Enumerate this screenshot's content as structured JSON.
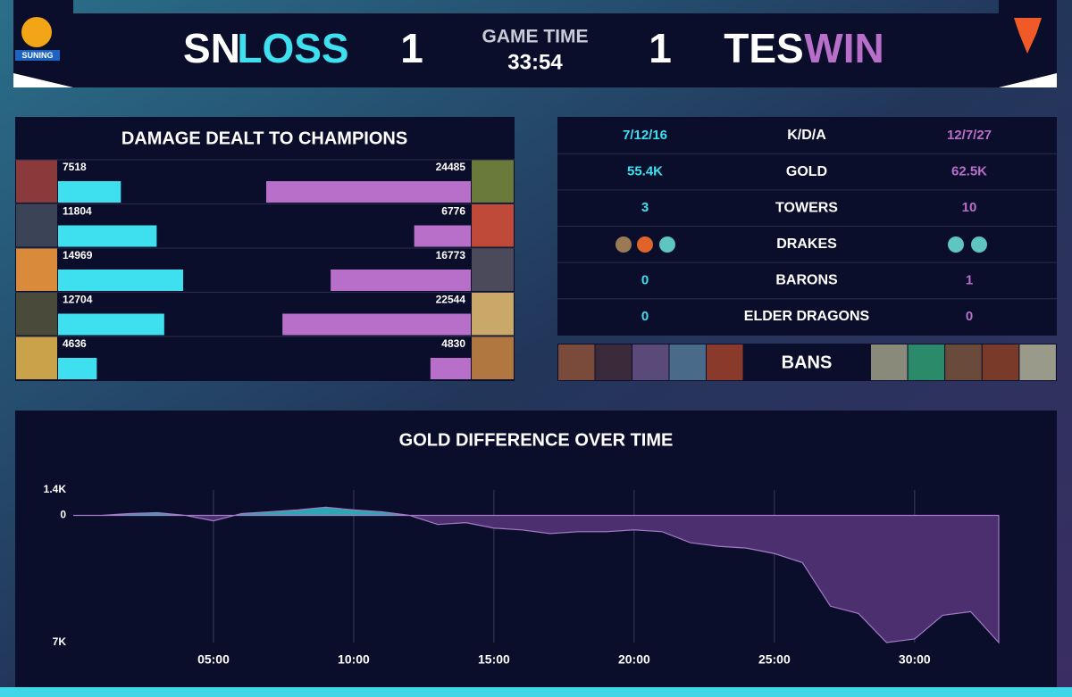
{
  "header": {
    "team_left": "SN",
    "result_left": "LOSS",
    "score_left": "1",
    "game_time_label": "GAME TIME",
    "game_time": "33:54",
    "score_right": "1",
    "team_right": "TES",
    "result_right": "WIN",
    "logo_left_text": "SUNING"
  },
  "damage": {
    "title": "DAMAGE DEALT TO CHAMPIONS",
    "left_values": [
      7518,
      11804,
      14969,
      12704,
      4636
    ],
    "right_values": [
      24485,
      6776,
      16773,
      22544,
      4830
    ],
    "left_color": "#3ee0f0",
    "right_color": "#b86fc9"
  },
  "stats": {
    "rows": [
      {
        "left": "7/12/16",
        "label": "K/D/A",
        "right": "12/7/27"
      },
      {
        "left": "55.4K",
        "label": "GOLD",
        "right": "62.5K"
      },
      {
        "left": "3",
        "label": "TOWERS",
        "right": "10"
      },
      {
        "label": "DRAKES"
      },
      {
        "left": "0",
        "label": "BARONS",
        "right": "1"
      },
      {
        "left": "0",
        "label": "ELDER DRAGONS",
        "right": "0"
      }
    ]
  },
  "bans": {
    "label": "BANS"
  },
  "gold_chart": {
    "title": "GOLD DIFFERENCE OVER TIME",
    "x": [
      0,
      1,
      2,
      3,
      4,
      5,
      6,
      7,
      8,
      9,
      10,
      11,
      12,
      13,
      14,
      15,
      16,
      17,
      18,
      19,
      20,
      21,
      22,
      23,
      24,
      25,
      26,
      27,
      28,
      29,
      30,
      31,
      32,
      33
    ],
    "values": [
      0,
      0,
      100,
      150,
      0,
      -300,
      100,
      200,
      300,
      450,
      300,
      200,
      0,
      -500,
      -400,
      -700,
      -800,
      -1000,
      -900,
      -900,
      -800,
      -900,
      -1500,
      -1700,
      -1800,
      -2100,
      -2600,
      -5000,
      -5400,
      -7000,
      -6800,
      -5500,
      -5300,
      -7000
    ],
    "xlim": [
      0,
      33
    ],
    "ylim": [
      -7000,
      1400
    ],
    "xticks": [
      {
        "value": 5,
        "label": "05:00"
      },
      {
        "value": 10,
        "label": "10:00"
      },
      {
        "value": 15,
        "label": "15:00"
      },
      {
        "value": 20,
        "label": "20:00"
      },
      {
        "value": 25,
        "label": "25:00"
      },
      {
        "value": 30,
        "label": "30:00"
      }
    ],
    "yticks": [
      {
        "value": 1400,
        "label": "1.4K"
      },
      0,
      {
        "value": -7000,
        "label": "7K"
      }
    ],
    "positive_color": "#2aa7b0",
    "negative_color": "#4b2f6f",
    "line_color": "#a57ac8",
    "grid": true
  }
}
